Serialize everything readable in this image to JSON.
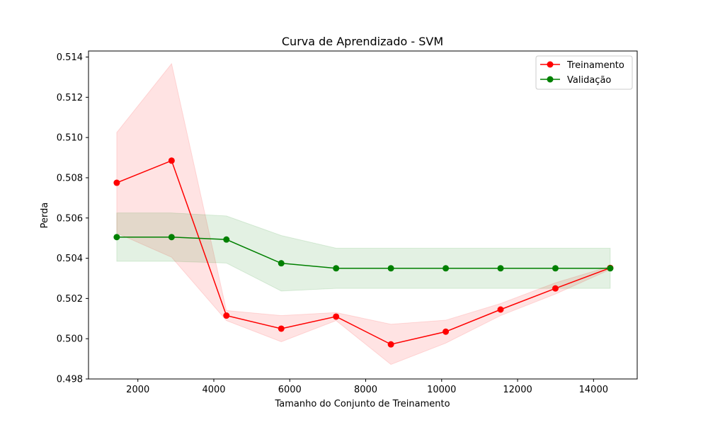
{
  "chart_data": {
    "type": "line",
    "title": "Curva de Aprendizado - SVM",
    "xlabel": "Tamanho do Conjunto de Treinamento",
    "ylabel": "Perda",
    "xlim": [
      700,
      15150
    ],
    "ylim": [
      0.498,
      0.5143
    ],
    "x_ticks": [
      2000,
      4000,
      6000,
      8000,
      10000,
      12000,
      14000
    ],
    "y_ticks": [
      0.498,
      0.5,
      0.502,
      0.504,
      0.506,
      0.508,
      0.51,
      0.512,
      0.514
    ],
    "y_tick_labels": [
      "0.498",
      "0.500",
      "0.502",
      "0.504",
      "0.506",
      "0.508",
      "0.510",
      "0.512",
      "0.514"
    ],
    "x": [
      1444,
      2888,
      4332,
      5776,
      7220,
      8664,
      10108,
      11552,
      12996,
      14440
    ],
    "legend_position": "upper right",
    "grid": false,
    "series": [
      {
        "name": "Treinamento",
        "color": "#ff0000",
        "values": [
          0.50775,
          0.50885,
          0.50115,
          0.5005,
          0.5011,
          0.49972,
          0.50035,
          0.50145,
          0.5025,
          0.50352
        ],
        "band_upper": [
          0.51025,
          0.51367,
          0.5014,
          0.50115,
          0.5013,
          0.50072,
          0.50092,
          0.50175,
          0.50278,
          0.5036
        ],
        "band_lower": [
          0.50525,
          0.50405,
          0.5009,
          0.49985,
          0.5009,
          0.49872,
          0.49978,
          0.50115,
          0.50222,
          0.50344
        ]
      },
      {
        "name": "Validação",
        "color": "#008000",
        "values": [
          0.50505,
          0.50505,
          0.50493,
          0.50375,
          0.5035,
          0.5035,
          0.5035,
          0.5035,
          0.5035,
          0.5035
        ],
        "band_upper": [
          0.50625,
          0.50625,
          0.5061,
          0.50513,
          0.5045,
          0.5045,
          0.5045,
          0.5045,
          0.5045,
          0.5045
        ],
        "band_lower": [
          0.50385,
          0.50385,
          0.50376,
          0.50237,
          0.5025,
          0.5025,
          0.5025,
          0.5025,
          0.5025,
          0.5025
        ]
      }
    ]
  }
}
